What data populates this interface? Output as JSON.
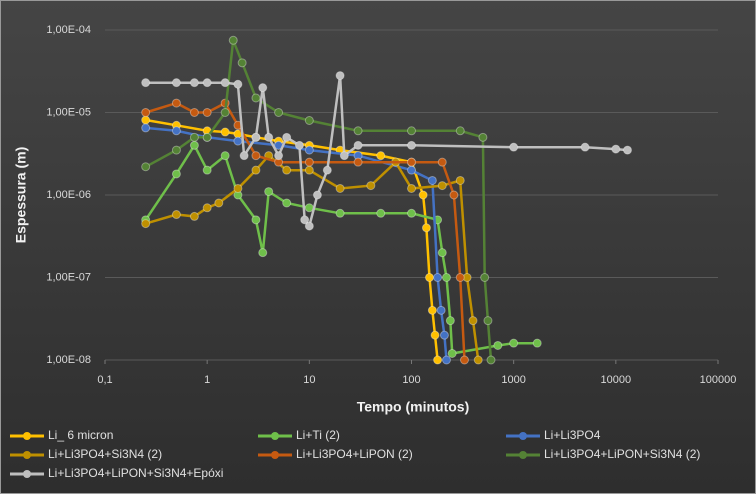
{
  "chart_data": {
    "type": "line",
    "x_label": "Tempo (minutos)",
    "y_label": "Espessura (m)",
    "xscale": "log",
    "yscale": "log",
    "xlim": [
      0.1,
      100000
    ],
    "ylim": [
      1e-08,
      0.0001
    ],
    "xticks": [
      {
        "value": 0.1,
        "label": "0,1"
      },
      1,
      10,
      100,
      1000,
      10000,
      100000
    ],
    "yticks": [
      {
        "value": 1e-08,
        "label": "1,00E-08"
      },
      {
        "value": 1e-07,
        "label": "1,00E-07"
      },
      {
        "value": 1e-06,
        "label": "1,00E-06"
      },
      {
        "value": 1e-05,
        "label": "1,00E-05"
      },
      {
        "value": 0.0001,
        "label": "1,00E-04"
      }
    ],
    "grid": true,
    "legend": "bottom",
    "series": [
      {
        "name": "Li_ 6 micron",
        "color": "#ffc000",
        "x": [
          0.25,
          0.5,
          1,
          1.5,
          2,
          3,
          5,
          10,
          20,
          50,
          100,
          130,
          140,
          150,
          160,
          170,
          180
        ],
        "values": [
          8.1e-06,
          7e-06,
          6e-06,
          5.8e-06,
          5.5e-06,
          5e-06,
          4.5e-06,
          4e-06,
          3.5e-06,
          3e-06,
          2.5e-06,
          1e-06,
          4e-07,
          1e-07,
          4e-08,
          2e-08,
          1e-08
        ]
      },
      {
        "name": "Li+Ti (2)",
        "color": "#6fbf4a",
        "x": [
          0.25,
          0.5,
          0.75,
          1,
          1.5,
          2,
          3,
          3.5,
          4,
          6,
          10,
          20,
          50,
          100,
          180,
          200,
          220,
          240,
          250,
          700,
          1000,
          1700
        ],
        "values": [
          5e-07,
          1.8e-06,
          4e-06,
          2e-06,
          3e-06,
          1e-06,
          5e-07,
          2e-07,
          1.1e-06,
          8e-07,
          7e-07,
          6e-07,
          6e-07,
          6e-07,
          5e-07,
          2e-07,
          1e-07,
          3e-08,
          1.2e-08,
          1.5e-08,
          1.6e-08,
          1.6e-08
        ]
      },
      {
        "name": "Li+Li3PO4",
        "color": "#4472c4",
        "x": [
          0.25,
          0.5,
          1,
          2,
          5,
          10,
          30,
          100,
          160,
          180,
          195,
          210,
          220
        ],
        "values": [
          6.5e-06,
          6e-06,
          5e-06,
          4.5e-06,
          4e-06,
          3.5e-06,
          3e-06,
          2e-06,
          1.5e-06,
          1e-07,
          4e-08,
          2e-08,
          1e-08
        ]
      },
      {
        "name": "Li+Li3PO4+Si3N4 (2)",
        "color": "#bf9000",
        "x": [
          0.25,
          0.5,
          0.75,
          1,
          1.3,
          2,
          3,
          4,
          6,
          10,
          20,
          40,
          70,
          100,
          200,
          300,
          350,
          400,
          450
        ],
        "values": [
          4.5e-07,
          5.8e-07,
          5.5e-07,
          7e-07,
          8e-07,
          1.2e-06,
          2e-06,
          3e-06,
          2e-06,
          2e-06,
          1.2e-06,
          1.3e-06,
          2.5e-06,
          1.2e-06,
          1.3e-06,
          1.5e-06,
          1e-07,
          3e-08,
          1e-08
        ]
      },
      {
        "name": "Li+Li3PO4+LiPON (2)",
        "color": "#c55a11",
        "x": [
          0.25,
          0.5,
          0.75,
          1,
          1.5,
          2,
          3,
          5,
          10,
          30,
          100,
          200,
          260,
          300,
          330
        ],
        "values": [
          1e-05,
          1.3e-05,
          1e-05,
          1e-05,
          1.3e-05,
          7e-06,
          3e-06,
          2.5e-06,
          2.5e-06,
          2.5e-06,
          2.5e-06,
          2.5e-06,
          1e-06,
          1e-07,
          1e-08
        ]
      },
      {
        "name": "Li+Li3PO4+LiPON+Si3N4 (2)",
        "color": "#548235",
        "x": [
          0.25,
          0.5,
          0.75,
          1,
          1.5,
          1.8,
          2.2,
          3,
          5,
          10,
          30,
          100,
          300,
          500,
          520,
          560,
          600
        ],
        "values": [
          2.2e-06,
          3.5e-06,
          5e-06,
          5e-06,
          1e-05,
          7.5e-05,
          4e-05,
          1.5e-05,
          1e-05,
          8e-06,
          6e-06,
          6e-06,
          6e-06,
          5e-06,
          1e-07,
          3e-08,
          1e-08
        ]
      },
      {
        "name": "Li+Li3PO4+LiPON+Si3N4+Epóxi",
        "color": "#bfbfbf",
        "x": [
          0.25,
          0.5,
          0.75,
          1,
          1.5,
          2,
          2.3,
          3,
          3.5,
          4,
          5,
          6,
          8,
          9,
          10,
          12,
          15,
          20,
          22,
          30,
          100,
          1000,
          5000,
          10000,
          13000
        ],
        "values": [
          2.3e-05,
          2.3e-05,
          2.3e-05,
          2.3e-05,
          2.3e-05,
          2.2e-05,
          3e-06,
          5e-06,
          2e-05,
          5e-06,
          3e-06,
          5e-06,
          4e-06,
          5e-07,
          4.2e-07,
          1e-06,
          2e-06,
          2.8e-05,
          3e-06,
          4e-06,
          4e-06,
          3.8e-06,
          3.8e-06,
          3.6e-06,
          3.5e-06
        ]
      }
    ]
  }
}
